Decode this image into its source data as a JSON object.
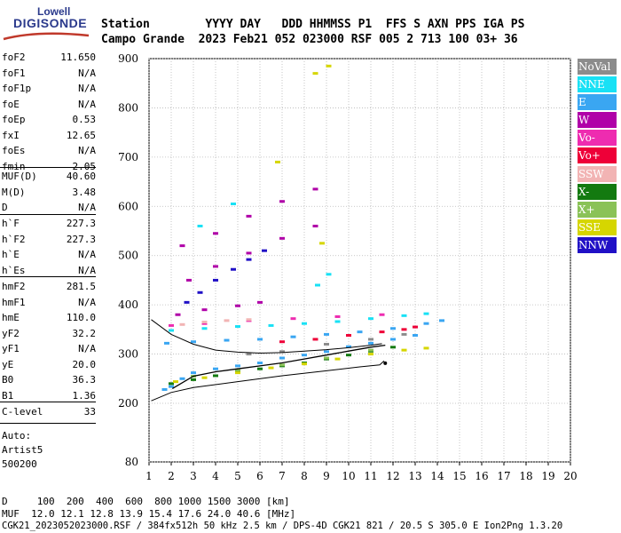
{
  "logo": {
    "line1": "Lowell",
    "line2": "DIGISONDE"
  },
  "header": {
    "row1": "Station        YYYY DAY   DDD HHMMSS P1  FFS S AXN PPS IGA PS",
    "row2": "Campo Grande  2023 Feb21 052 023000 RSF 005 2 713 100 03+ 36"
  },
  "params": {
    "group1": [
      {
        "name": "foF2",
        "value": "11.650"
      },
      {
        "name": "foF1",
        "value": "N/A"
      },
      {
        "name": "foF1p",
        "value": "N/A"
      },
      {
        "name": "foE",
        "value": "N/A"
      },
      {
        "name": "foEp",
        "value": "0.53"
      },
      {
        "name": "fxI",
        "value": "12.65"
      },
      {
        "name": "foEs",
        "value": "N/A"
      },
      {
        "name": "fmin",
        "value": "2.05"
      }
    ],
    "group2": [
      {
        "name": "MUF(D)",
        "value": "40.60"
      },
      {
        "name": "M(D)",
        "value": "3.48"
      },
      {
        "name": "D",
        "value": "N/A"
      }
    ],
    "group3": [
      {
        "name": "h`F",
        "value": "227.3"
      },
      {
        "name": "h`F2",
        "value": "227.3"
      },
      {
        "name": "h`E",
        "value": "N/A"
      },
      {
        "name": "h`Es",
        "value": "N/A"
      }
    ],
    "group4": [
      {
        "name": "hmF2",
        "value": "281.5"
      },
      {
        "name": "hmF1",
        "value": "N/A"
      },
      {
        "name": "hmE",
        "value": "110.0"
      },
      {
        "name": "yF2",
        "value": "32.2"
      },
      {
        "name": "yF1",
        "value": "N/A"
      },
      {
        "name": "yE",
        "value": "20.0"
      },
      {
        "name": "B0",
        "value": "36.3"
      },
      {
        "name": "B1",
        "value": "1.36"
      }
    ],
    "group5": [
      {
        "name": "C-level",
        "value": "33"
      }
    ],
    "autoscaling": {
      "line1": "Auto:",
      "line2": "Artist5",
      "line3": "500200"
    }
  },
  "legend": [
    {
      "label": "NoVal",
      "color": "#8c8c8c"
    },
    {
      "label": "NNE",
      "color": "#19e1f5"
    },
    {
      "label": "E",
      "color": "#3aa6f2"
    },
    {
      "label": "W",
      "color": "#b000a8"
    },
    {
      "label": "Vo-",
      "color": "#ee2cb0"
    },
    {
      "label": "Vo+",
      "color": "#ee0038"
    },
    {
      "label": "SSW",
      "color": "#f2b4b4"
    },
    {
      "label": "X-",
      "color": "#137a10"
    },
    {
      "label": "X+",
      "color": "#8ac257"
    },
    {
      "label": "SSE",
      "color": "#d6d600"
    },
    {
      "label": "NNW",
      "color": "#2010c6"
    }
  ],
  "footer": {
    "row1": "D     100  200  400  600  800 1000 1500 3000 [km]",
    "row2": "MUF  12.0 12.1 12.8 13.9 15.4 17.6 24.0 40.6 [MHz]",
    "row3": "CGK21_2023052023000.RSF / 384fx512h 50 kHz 2.5 km / DPS-4D CGK21 821 / 20.5 S 305.0 E Ion2Png 1.3.20"
  },
  "chart_data": {
    "type": "scatter",
    "title": "",
    "xlabel": "",
    "ylabel": "",
    "xlim": [
      1,
      20
    ],
    "ylim": [
      80,
      900
    ],
    "x_ticks": [
      1,
      2,
      3,
      4,
      5,
      6,
      7,
      8,
      9,
      10,
      11,
      12,
      13,
      14,
      15,
      16,
      17,
      18,
      19,
      20
    ],
    "y_ticks": [
      80,
      200,
      300,
      400,
      500,
      600,
      700,
      800,
      900
    ],
    "grid": true,
    "legend_position": "right",
    "series": [
      {
        "name": "E",
        "values": [
          [
            1.8,
            322
          ],
          [
            3,
            325
          ],
          [
            4.5,
            328
          ],
          [
            6,
            330
          ],
          [
            7.5,
            335
          ],
          [
            9,
            340
          ],
          [
            10.5,
            345
          ],
          [
            12,
            352
          ],
          [
            13.5,
            362
          ],
          [
            14.2,
            368
          ],
          [
            1.7,
            228
          ],
          [
            2,
            234
          ],
          [
            2.5,
            250
          ],
          [
            3,
            262
          ],
          [
            4,
            270
          ],
          [
            5,
            276
          ],
          [
            6,
            282
          ],
          [
            7,
            292
          ],
          [
            8,
            298
          ],
          [
            9,
            305
          ],
          [
            10,
            315
          ],
          [
            11,
            322
          ],
          [
            12,
            330
          ],
          [
            13,
            338
          ]
        ]
      },
      {
        "name": "NNE",
        "values": [
          [
            2,
            348
          ],
          [
            3.5,
            352
          ],
          [
            5,
            356
          ],
          [
            6.5,
            358
          ],
          [
            8,
            362
          ],
          [
            9.5,
            366
          ],
          [
            11,
            372
          ],
          [
            12.5,
            378
          ],
          [
            13.5,
            382
          ],
          [
            8.6,
            440
          ],
          [
            9.1,
            462
          ],
          [
            3.3,
            560
          ],
          [
            4.8,
            605
          ]
        ]
      },
      {
        "name": "W",
        "values": [
          [
            2.3,
            380
          ],
          [
            3.5,
            390
          ],
          [
            5,
            398
          ],
          [
            6,
            405
          ],
          [
            2.8,
            450
          ],
          [
            4,
            478
          ],
          [
            5.5,
            505
          ],
          [
            7,
            535
          ],
          [
            8.5,
            560
          ],
          [
            2.5,
            520
          ],
          [
            4,
            545
          ],
          [
            5.5,
            580
          ],
          [
            7,
            610
          ],
          [
            8.5,
            635
          ]
        ]
      },
      {
        "name": "NNW",
        "values": [
          [
            2.7,
            405
          ],
          [
            3.3,
            425
          ],
          [
            4,
            450
          ],
          [
            4.8,
            472
          ],
          [
            5.5,
            492
          ],
          [
            6.2,
            510
          ]
        ]
      },
      {
        "name": "Vo-",
        "values": [
          [
            2,
            358
          ],
          [
            3.5,
            362
          ],
          [
            5.5,
            368
          ],
          [
            7.5,
            372
          ],
          [
            9.5,
            376
          ],
          [
            11.5,
            380
          ]
        ]
      },
      {
        "name": "Vo+",
        "values": [
          [
            7,
            325
          ],
          [
            8.5,
            330
          ],
          [
            10,
            338
          ],
          [
            11.5,
            345
          ],
          [
            12.5,
            350
          ],
          [
            13,
            355
          ]
        ]
      },
      {
        "name": "SSW",
        "values": [
          [
            2.5,
            360
          ],
          [
            3.5,
            365
          ],
          [
            4.5,
            368
          ],
          [
            5.5,
            370
          ]
        ]
      },
      {
        "name": "X-",
        "values": [
          [
            2,
            240
          ],
          [
            3,
            248
          ],
          [
            4,
            256
          ],
          [
            5,
            264
          ],
          [
            6,
            270
          ],
          [
            7,
            276
          ],
          [
            8,
            282
          ],
          [
            9,
            290
          ],
          [
            10,
            298
          ],
          [
            11,
            306
          ],
          [
            12,
            314
          ]
        ]
      },
      {
        "name": "X+",
        "values": [
          [
            3,
            255
          ],
          [
            5,
            268
          ],
          [
            7,
            278
          ],
          [
            9,
            292
          ],
          [
            11,
            308
          ]
        ]
      },
      {
        "name": "SSE",
        "values": [
          [
            2.2,
            244
          ],
          [
            3.5,
            252
          ],
          [
            5,
            262
          ],
          [
            6.5,
            272
          ],
          [
            8,
            280
          ],
          [
            9.5,
            290
          ],
          [
            11,
            300
          ],
          [
            12.5,
            308
          ],
          [
            13.5,
            312
          ],
          [
            8.5,
            870
          ],
          [
            9.1,
            885
          ],
          [
            6.8,
            690
          ],
          [
            8.8,
            525
          ]
        ]
      },
      {
        "name": "NoVal",
        "values": [
          [
            5.5,
            300
          ],
          [
            7,
            305
          ],
          [
            9,
            320
          ],
          [
            11,
            330
          ],
          [
            12.5,
            340
          ]
        ]
      }
    ],
    "profile_curve": [
      [
        2.05,
        230
      ],
      [
        3,
        255
      ],
      [
        4,
        264
      ],
      [
        5,
        270
      ],
      [
        6,
        276
      ],
      [
        7,
        282
      ],
      [
        8,
        290
      ],
      [
        9,
        298
      ],
      [
        10,
        306
      ],
      [
        11,
        314
      ],
      [
        11.65,
        318
      ]
    ],
    "hmF2_marker": [
      11.65,
      281.5
    ],
    "virtual_height_trace": [
      [
        1.1,
        370
      ],
      [
        2,
        340
      ],
      [
        3,
        320
      ],
      [
        4,
        308
      ],
      [
        5,
        304
      ],
      [
        6,
        302
      ],
      [
        7,
        303
      ],
      [
        8,
        306
      ],
      [
        9,
        309
      ],
      [
        10,
        313
      ],
      [
        11,
        318
      ],
      [
        11.5,
        321
      ]
    ],
    "bottom_curve": [
      [
        1.1,
        205
      ],
      [
        2,
        222
      ],
      [
        3,
        232
      ],
      [
        5,
        244
      ],
      [
        7,
        256
      ],
      [
        9,
        266
      ],
      [
        10.5,
        274
      ],
      [
        11.4,
        278
      ],
      [
        11.6,
        286
      ]
    ]
  }
}
